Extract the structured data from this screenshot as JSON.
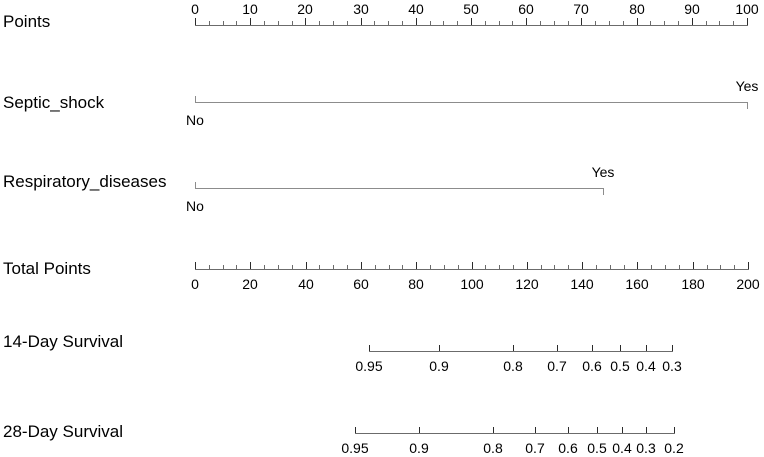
{
  "chart_data": {
    "type": "nomogram",
    "legend_position": "none",
    "grid": false,
    "colors": {
      "axis_line": "#6b6b6b",
      "category_line": "#8c8c8c",
      "major_tick": "#2b2b2b",
      "minor_tick": "#6b6b6b",
      "text": "#000000",
      "background": "#ffffff"
    },
    "axes": [
      {
        "id": "points",
        "label": "Points",
        "kind": "scale",
        "range": [
          0,
          100
        ],
        "tick_step": 10,
        "minor_step": 2.5,
        "tick_label_side": "above",
        "tick_labels": [
          "0",
          "10",
          "20",
          "30",
          "40",
          "50",
          "60",
          "70",
          "80",
          "90",
          "100"
        ]
      },
      {
        "id": "septic_shock",
        "label": "Septic_shock",
        "kind": "category",
        "levels": [
          {
            "label": "No",
            "points": 0,
            "label_side": "below"
          },
          {
            "label": "Yes",
            "points": 100,
            "label_side": "above"
          }
        ]
      },
      {
        "id": "respiratory_diseases",
        "label": "Respiratory_diseases",
        "kind": "category",
        "levels": [
          {
            "label": "No",
            "points": 0,
            "label_side": "below"
          },
          {
            "label": "Yes",
            "points": 74,
            "label_side": "above"
          }
        ]
      },
      {
        "id": "total_points",
        "label": "Total Points",
        "kind": "scale",
        "range": [
          0,
          200
        ],
        "tick_step": 20,
        "minor_step": 5,
        "tick_label_side": "below",
        "tick_labels": [
          "0",
          "20",
          "40",
          "60",
          "80",
          "100",
          "120",
          "140",
          "160",
          "180",
          "200"
        ]
      },
      {
        "id": "survival_14",
        "label": "14-Day Survival",
        "kind": "probability",
        "tick_label_side": "below",
        "tick_labels": [
          "0.95",
          "0.9",
          "0.8",
          "0.7",
          "0.6",
          "0.5",
          "0.4",
          "0.3"
        ]
      },
      {
        "id": "survival_28",
        "label": "28-Day Survival",
        "kind": "probability",
        "tick_label_side": "below",
        "tick_labels": [
          "0.95",
          "0.9",
          "0.8",
          "0.7",
          "0.6",
          "0.5",
          "0.4",
          "0.3",
          "0.2"
        ]
      }
    ]
  }
}
